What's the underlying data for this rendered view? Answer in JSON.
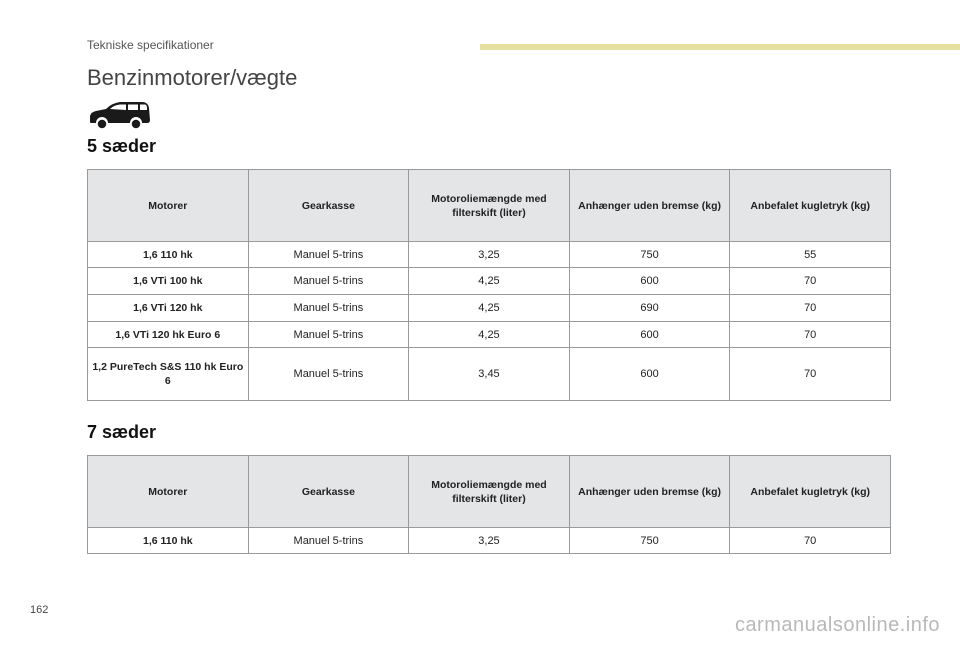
{
  "header": {
    "section": "Tekniske specifikationer",
    "title": "Benzinmotorer/vægte",
    "accent_color": "#e6e0a0"
  },
  "icon": "car-icon",
  "columns": [
    "Motorer",
    "Gearkasse",
    "Motoroliemængde med filterskift (liter)",
    "Anhænger uden bremse (kg)",
    "Anbefalet kugletryk (kg)"
  ],
  "seats5": {
    "heading": "5 sæder",
    "rows": [
      [
        "1,6 110 hk",
        "Manuel 5-trins",
        "3,25",
        "750",
        "55"
      ],
      [
        "1,6 VTi 100 hk",
        "Manuel 5-trins",
        "4,25",
        "600",
        "70"
      ],
      [
        "1,6 VTi 120 hk",
        "Manuel 5-trins",
        "4,25",
        "690",
        "70"
      ],
      [
        "1,6 VTi 120 hk Euro 6",
        "Manuel 5-trins",
        "4,25",
        "600",
        "70"
      ],
      [
        "1,2 PureTech S&S 110 hk Euro 6",
        "Manuel 5-trins",
        "3,45",
        "600",
        "70"
      ]
    ]
  },
  "seats7": {
    "heading": "7 sæder",
    "rows": [
      [
        "1,6 110 hk",
        "Manuel 5-trins",
        "3,25",
        "750",
        "70"
      ]
    ]
  },
  "footer": {
    "page_number": "162",
    "watermark": "carmanualsonline.info"
  }
}
